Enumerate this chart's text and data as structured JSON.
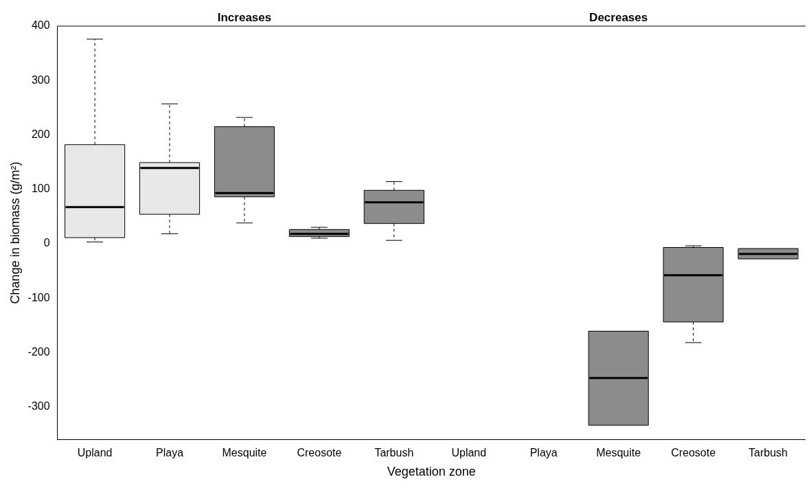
{
  "chart_data": {
    "type": "box",
    "xlabel": "Vegetation zone",
    "ylabel": "Change in biomass (g/m²)",
    "annotations": [
      "Increases",
      "Decreases"
    ],
    "categories": [
      "Upland",
      "Playa",
      "Mesquite",
      "Creosote",
      "Tarbush",
      "Upland",
      "Playa",
      "Mesquite",
      "Creosote",
      "Tarbush"
    ],
    "colors": [
      "#e8e8e8",
      "#e8e8e8",
      "#8c8c8c",
      "#8c8c8c",
      "#8c8c8c",
      "#e8e8e8",
      "#e8e8e8",
      "#8c8c8c",
      "#8c8c8c",
      "#8c8c8c"
    ],
    "boxes": [
      {
        "low": 3,
        "q1": 11,
        "median": 67,
        "q3": 182,
        "high": 376
      },
      {
        "low": 18,
        "q1": 54,
        "median": 139,
        "q3": 149,
        "high": 257
      },
      {
        "low": 38,
        "q1": 86,
        "median": 93,
        "q3": 215,
        "high": 232
      },
      {
        "low": 10,
        "q1": 13,
        "median": 18,
        "q3": 26,
        "high": 30
      },
      {
        "low": 6,
        "q1": 37,
        "median": 76,
        "q3": 98,
        "high": 114
      },
      null,
      null,
      {
        "low": -334,
        "q1": -334,
        "median": -247,
        "q3": -161,
        "high": -161
      },
      {
        "low": -182,
        "q1": -144,
        "median": -58,
        "q3": -7,
        "high": -4
      },
      {
        "low": -28,
        "q1": -28,
        "median": -19,
        "q3": -9,
        "high": -9
      }
    ],
    "ylim": [
      -360,
      400
    ],
    "yticks": [
      -300,
      -200,
      -100,
      0,
      100,
      200,
      300,
      400
    ],
    "grid": false,
    "legend": false
  }
}
